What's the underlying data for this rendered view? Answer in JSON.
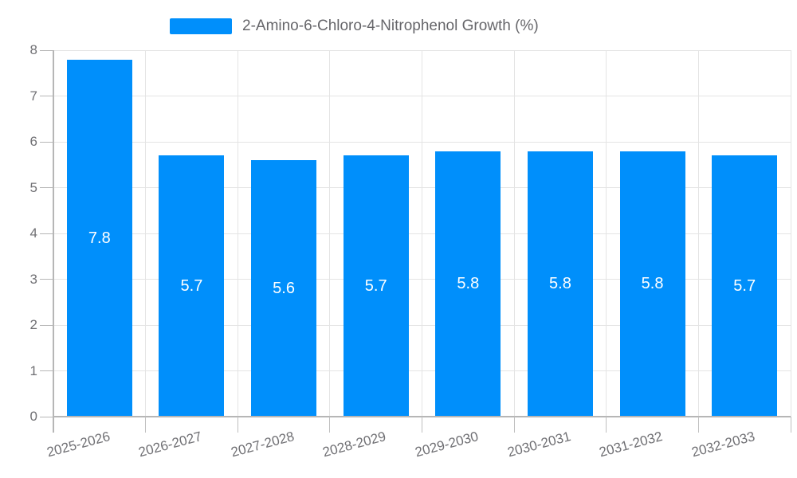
{
  "legend": {
    "label": "2-Amino-6-Chloro-4-Nitrophenol Growth (%)"
  },
  "chart_data": {
    "type": "bar",
    "title": "2-Amino-6-Chloro-4-Nitrophenol Growth (%)",
    "categories": [
      "2025-2026",
      "2026-2027",
      "2027-2028",
      "2028-2029",
      "2029-2030",
      "2030-2031",
      "2031-2032",
      "2032-2033"
    ],
    "series": [
      {
        "name": "2-Amino-6-Chloro-4-Nitrophenol Growth (%)",
        "values": [
          7.8,
          5.7,
          5.6,
          5.7,
          5.8,
          5.8,
          5.8,
          5.7
        ]
      }
    ],
    "data_labels": [
      "7.8",
      "5.7",
      "5.6",
      "5.7",
      "5.8",
      "5.8",
      "5.8",
      "5.7"
    ],
    "xlabel": "",
    "ylabel": "",
    "ylim": [
      0,
      8
    ],
    "yticks": [
      0,
      1,
      2,
      3,
      4,
      5,
      6,
      7,
      8
    ],
    "grid": true,
    "legend_position": "top",
    "x_label_rotation": -15,
    "colors": {
      "bar": "#008FFB",
      "axis_label": "#707074",
      "grid_line": "#e4e4e4",
      "axis_line": "#b6b6b6",
      "data_label": "#ffffff",
      "background": "#ffffff"
    }
  }
}
